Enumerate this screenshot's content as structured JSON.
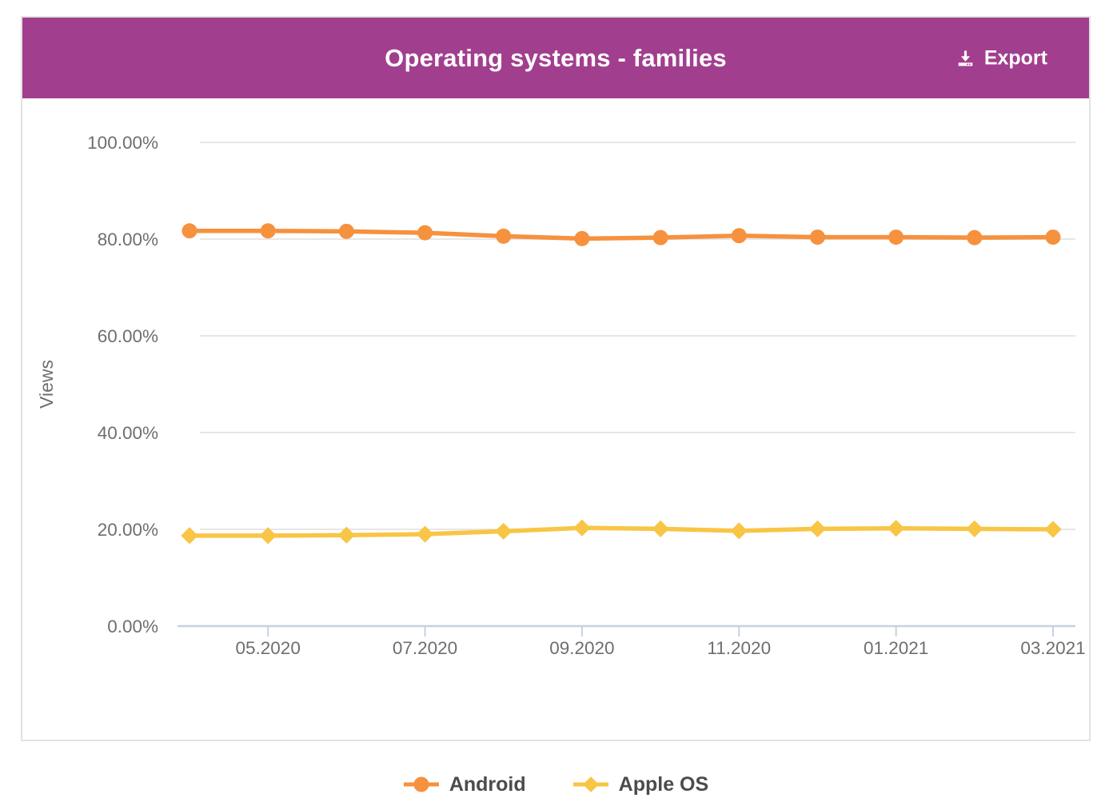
{
  "header": {
    "title": "Operating systems - families",
    "export_label": "Export"
  },
  "colors": {
    "header_background": "#a23e8e",
    "header_text": "#ffffff",
    "android_line": "#f6913e",
    "apple_line": "#f8c545",
    "gridline": "#e7e7e7",
    "axis_line": "#c6d2e0",
    "tick_label": "#6e6e6e",
    "legend_text": "#4b4b4b",
    "card_border": "#e2e2e2"
  },
  "chart_data": {
    "type": "line",
    "title": "Operating systems - families",
    "ylabel": "Views",
    "xlabel": "",
    "ylim": [
      0,
      100
    ],
    "grid": "horizontal",
    "legend_position": "bottom",
    "x": [
      "04.2020",
      "05.2020",
      "06.2020",
      "07.2020",
      "08.2020",
      "09.2020",
      "10.2020",
      "11.2020",
      "12.2020",
      "01.2021",
      "02.2021",
      "03.2021"
    ],
    "x_tick_labels": [
      "05.2020",
      "07.2020",
      "09.2020",
      "11.2020",
      "01.2021",
      "03.2021"
    ],
    "y_tick_labels": [
      "100.00%",
      "80.00%",
      "60.00%",
      "40.00%",
      "20.00%",
      "0.00%"
    ],
    "series": [
      {
        "name": "Android",
        "marker": "circle",
        "color": "#f6913e",
        "values": [
          81.7,
          81.7,
          81.6,
          81.3,
          80.6,
          80.1,
          80.3,
          80.7,
          80.4,
          80.4,
          80.3,
          80.4
        ]
      },
      {
        "name": "Apple OS",
        "marker": "diamond",
        "color": "#f8c545",
        "values": [
          18.7,
          18.7,
          18.8,
          19.0,
          19.6,
          20.3,
          20.1,
          19.7,
          20.1,
          20.2,
          20.1,
          20.0
        ]
      }
    ]
  }
}
